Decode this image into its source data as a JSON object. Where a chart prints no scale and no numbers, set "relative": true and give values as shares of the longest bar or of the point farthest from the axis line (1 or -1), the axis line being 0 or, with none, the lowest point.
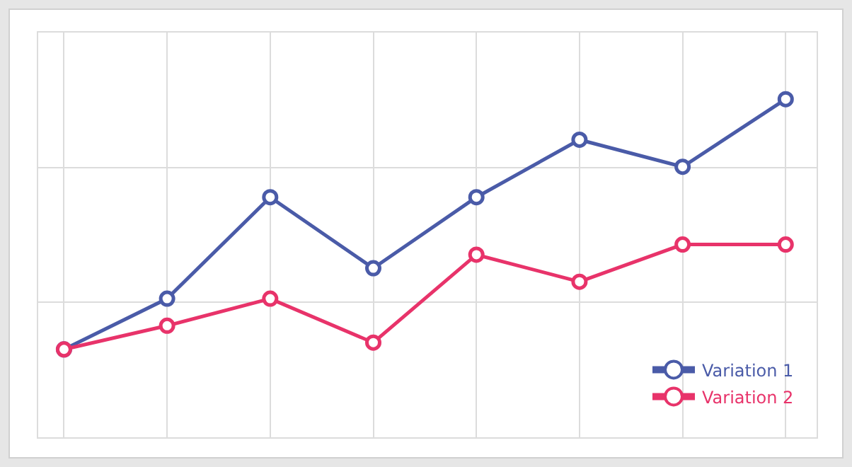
{
  "chart_data": {
    "type": "line",
    "relative": true,
    "categories": [
      null,
      null,
      null,
      null,
      null,
      null,
      null,
      null
    ],
    "series": [
      {
        "name": "Variation 1",
        "color": "#4a5ba8",
        "values": [
          0.26,
          0.41,
          0.71,
          0.5,
          0.71,
          0.88,
          0.8,
          1
        ]
      },
      {
        "name": "Variation 2",
        "color": "#e8336a",
        "values": [
          0.26,
          0.33,
          0.41,
          0.28,
          0.54,
          0.46,
          0.57,
          0.57
        ]
      }
    ],
    "marker": "circle",
    "line_style": "solid",
    "grid": true,
    "legend": "bottom right"
  }
}
